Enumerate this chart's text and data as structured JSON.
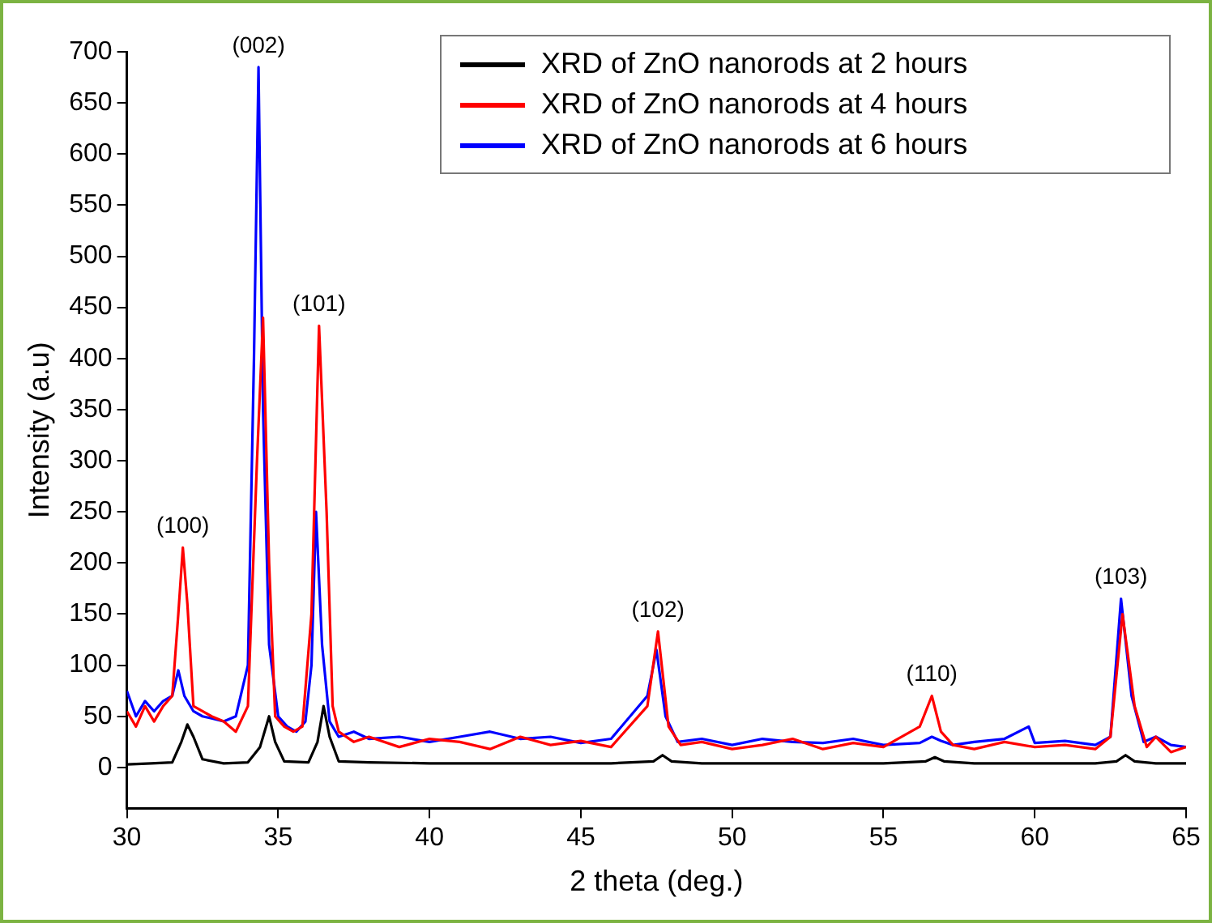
{
  "chart_data": {
    "type": "line",
    "xlabel": "2 theta (deg.)",
    "ylabel": "Intensity (a.u)",
    "xlim": [
      30,
      65
    ],
    "ylim": [
      -40,
      700
    ],
    "xticks": [
      30,
      35,
      40,
      45,
      50,
      55,
      60,
      65
    ],
    "yticks": [
      0,
      50,
      100,
      150,
      200,
      250,
      300,
      350,
      400,
      450,
      500,
      550,
      600,
      650,
      700
    ],
    "grid": false,
    "legend": "top right",
    "marker": "none",
    "line_style": "solid",
    "series": [
      {
        "name": "XRD of ZnO nanorods at 2 hours",
        "color": "#000000",
        "x": [
          30,
          30.8,
          31.5,
          31.8,
          32.0,
          32.2,
          32.5,
          33.2,
          34.0,
          34.4,
          34.7,
          34.9,
          35.2,
          36.0,
          36.3,
          36.5,
          36.7,
          37.0,
          38,
          40,
          42,
          44,
          46,
          47.4,
          47.7,
          48.0,
          49,
          51,
          53,
          55,
          56.4,
          56.7,
          57.0,
          58,
          60,
          62,
          62.7,
          63.0,
          63.3,
          64,
          65
        ],
        "values": [
          3,
          4,
          5,
          25,
          42,
          30,
          8,
          4,
          5,
          20,
          50,
          25,
          6,
          5,
          25,
          60,
          30,
          6,
          5,
          4,
          4,
          4,
          4,
          6,
          12,
          6,
          4,
          4,
          4,
          4,
          6,
          10,
          6,
          4,
          4,
          4,
          6,
          12,
          6,
          4,
          4
        ]
      },
      {
        "name": "XRD of ZnO nanorods at 4 hours",
        "color": "#ff0000",
        "x": [
          30,
          30.3,
          30.6,
          30.9,
          31.2,
          31.5,
          31.7,
          31.85,
          32.0,
          32.2,
          32.5,
          32.8,
          33.2,
          33.6,
          34.0,
          34.3,
          34.5,
          34.7,
          34.9,
          35.2,
          35.5,
          35.8,
          36.1,
          36.35,
          36.6,
          36.8,
          37.0,
          37.5,
          38,
          39,
          40,
          41,
          42,
          43,
          44,
          45,
          46,
          47.2,
          47.55,
          47.9,
          48.3,
          49,
          50,
          51,
          52,
          53,
          54,
          55,
          56.2,
          56.6,
          56.9,
          57.3,
          58,
          59,
          60,
          61,
          62,
          62.5,
          62.9,
          63.3,
          63.7,
          64,
          64.5,
          65
        ],
        "values": [
          55,
          40,
          60,
          45,
          60,
          70,
          150,
          215,
          160,
          60,
          55,
          50,
          45,
          35,
          60,
          300,
          440,
          200,
          50,
          40,
          35,
          40,
          150,
          432,
          250,
          60,
          35,
          25,
          30,
          20,
          28,
          25,
          18,
          30,
          22,
          26,
          20,
          60,
          133,
          40,
          22,
          25,
          18,
          22,
          28,
          18,
          24,
          20,
          40,
          70,
          35,
          22,
          18,
          25,
          20,
          22,
          18,
          30,
          150,
          60,
          20,
          30,
          15,
          20
        ]
      },
      {
        "name": "XRD of ZnO nanorods at 6 hours",
        "color": "#0000ff",
        "x": [
          30,
          30.3,
          30.6,
          30.9,
          31.2,
          31.5,
          31.7,
          31.9,
          32.2,
          32.5,
          32.8,
          33.2,
          33.6,
          34.0,
          34.2,
          34.35,
          34.5,
          34.7,
          35.0,
          35.3,
          35.6,
          35.9,
          36.1,
          36.25,
          36.45,
          36.7,
          37.0,
          37.5,
          38,
          39,
          40,
          41,
          42,
          43,
          44,
          45,
          46,
          47.2,
          47.5,
          47.8,
          48.2,
          49,
          50,
          51,
          52,
          53,
          54,
          55,
          56.2,
          56.6,
          56.9,
          57.3,
          58,
          59,
          59.8,
          60,
          61,
          62,
          62.5,
          62.85,
          63.2,
          63.6,
          64,
          64.5,
          65
        ],
        "values": [
          75,
          50,
          65,
          55,
          65,
          70,
          95,
          70,
          55,
          50,
          48,
          45,
          50,
          100,
          400,
          685,
          350,
          120,
          50,
          40,
          35,
          45,
          100,
          250,
          120,
          45,
          30,
          35,
          28,
          30,
          25,
          30,
          35,
          28,
          30,
          24,
          28,
          70,
          115,
          50,
          25,
          28,
          22,
          28,
          25,
          24,
          28,
          22,
          24,
          30,
          26,
          22,
          25,
          28,
          40,
          24,
          26,
          22,
          30,
          165,
          70,
          25,
          30,
          22,
          20
        ]
      }
    ],
    "annotations": [
      {
        "text": "(100)",
        "x": 31.85,
        "y": 215
      },
      {
        "text": "(002)",
        "x": 34.35,
        "y": 685
      },
      {
        "text": "(101)",
        "x": 36.35,
        "y": 432
      },
      {
        "text": "(102)",
        "x": 47.55,
        "y": 133
      },
      {
        "text": "(110)",
        "x": 56.6,
        "y": 70
      },
      {
        "text": "(103)",
        "x": 62.85,
        "y": 165
      }
    ]
  }
}
